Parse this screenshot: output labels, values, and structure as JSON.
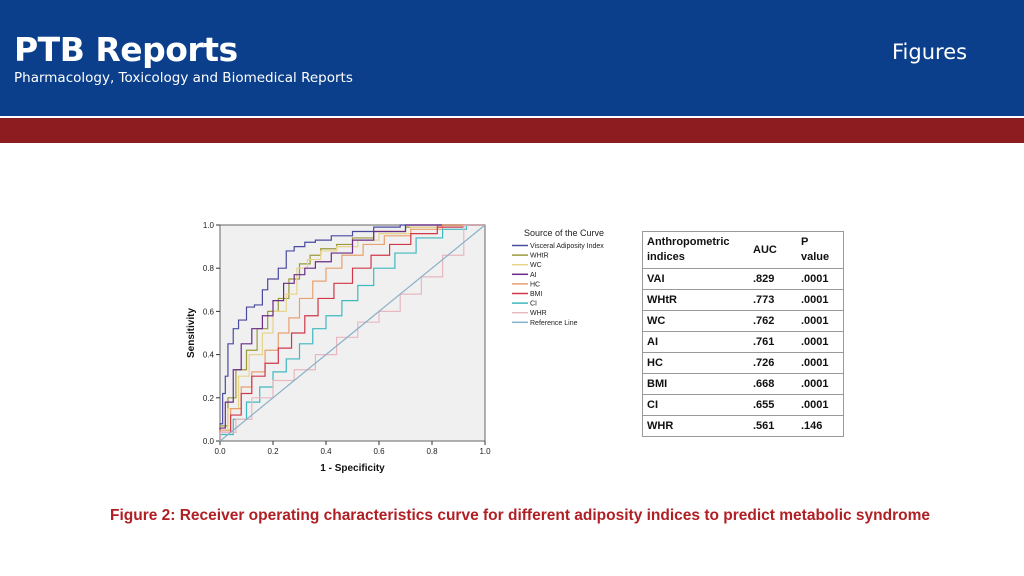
{
  "header": {
    "brand_title": "PTB Reports",
    "brand_subtitle": "Pharmacology, Toxicology and Biomedical Reports",
    "section_label": "Figures",
    "bg_color": "#0b3f8c",
    "band_color": "#8c1c1f"
  },
  "caption": "Figure 2: Receiver operating characteristics curve for different adiposity indices to predict metabolic syndrome",
  "auc_table": {
    "headers": [
      "Anthropometric indices",
      "AUC",
      "P value"
    ],
    "rows": [
      [
        "VAI",
        ".829",
        ".0001"
      ],
      [
        "WHtR",
        ".773",
        ".0001"
      ],
      [
        "WC",
        ".762",
        ".0001"
      ],
      [
        "AI",
        ".761",
        ".0001"
      ],
      [
        "HC",
        ".726",
        ".0001"
      ],
      [
        "BMI",
        ".668",
        ".0001"
      ],
      [
        "CI",
        ".655",
        ".0001"
      ],
      [
        "WHR",
        ".561",
        ".146"
      ]
    ]
  },
  "chart_data": {
    "type": "line",
    "xlabel": "1 - Specificity",
    "ylabel": "Sensitivity",
    "xlim": [
      0,
      1
    ],
    "ylim": [
      0,
      1
    ],
    "xticks": [
      "0.0",
      "0.2",
      "0.4",
      "0.6",
      "0.8",
      "1.0"
    ],
    "yticks": [
      "0.0",
      "0.2",
      "0.4",
      "0.6",
      "0.8",
      "1.0"
    ],
    "grid": false,
    "legend_title": "Source of the Curve",
    "legend_position": "right",
    "series": [
      {
        "name": "Visceral Adiposity Index",
        "color": "#4a4aa0",
        "points": [
          [
            0,
            0
          ],
          [
            0.01,
            0.08
          ],
          [
            0.02,
            0.22
          ],
          [
            0.03,
            0.3
          ],
          [
            0.05,
            0.45
          ],
          [
            0.07,
            0.52
          ],
          [
            0.1,
            0.56
          ],
          [
            0.13,
            0.62
          ],
          [
            0.16,
            0.63
          ],
          [
            0.18,
            0.7
          ],
          [
            0.22,
            0.75
          ],
          [
            0.25,
            0.8
          ],
          [
            0.28,
            0.88
          ],
          [
            0.3,
            0.9
          ],
          [
            0.32,
            0.9
          ],
          [
            0.36,
            0.92
          ],
          [
            0.42,
            0.93
          ],
          [
            0.5,
            0.95
          ],
          [
            0.58,
            0.97
          ],
          [
            0.68,
            0.99
          ],
          [
            0.8,
            1.0
          ],
          [
            1,
            1
          ]
        ]
      },
      {
        "name": "WHtR",
        "color": "#9a9a3a",
        "points": [
          [
            0,
            0
          ],
          [
            0.03,
            0.07
          ],
          [
            0.06,
            0.2
          ],
          [
            0.1,
            0.33
          ],
          [
            0.14,
            0.42
          ],
          [
            0.18,
            0.52
          ],
          [
            0.22,
            0.6
          ],
          [
            0.26,
            0.66
          ],
          [
            0.3,
            0.75
          ],
          [
            0.34,
            0.82
          ],
          [
            0.38,
            0.86
          ],
          [
            0.44,
            0.89
          ],
          [
            0.5,
            0.91
          ],
          [
            0.58,
            0.94
          ],
          [
            0.7,
            0.97
          ],
          [
            0.82,
            0.99
          ],
          [
            1,
            1
          ]
        ]
      },
      {
        "name": "WC",
        "color": "#e8d38a",
        "points": [
          [
            0,
            0
          ],
          [
            0.03,
            0.05
          ],
          [
            0.07,
            0.15
          ],
          [
            0.11,
            0.3
          ],
          [
            0.16,
            0.4
          ],
          [
            0.2,
            0.5
          ],
          [
            0.25,
            0.6
          ],
          [
            0.29,
            0.68
          ],
          [
            0.33,
            0.8
          ],
          [
            0.38,
            0.84
          ],
          [
            0.44,
            0.88
          ],
          [
            0.52,
            0.9
          ],
          [
            0.6,
            0.93
          ],
          [
            0.72,
            0.96
          ],
          [
            0.84,
            0.99
          ],
          [
            1,
            1
          ]
        ]
      },
      {
        "name": "AI",
        "color": "#6a2a86",
        "points": [
          [
            0,
            0
          ],
          [
            0.02,
            0.06
          ],
          [
            0.05,
            0.18
          ],
          [
            0.08,
            0.33
          ],
          [
            0.12,
            0.45
          ],
          [
            0.16,
            0.52
          ],
          [
            0.2,
            0.58
          ],
          [
            0.24,
            0.65
          ],
          [
            0.28,
            0.73
          ],
          [
            0.32,
            0.77
          ],
          [
            0.36,
            0.8
          ],
          [
            0.42,
            0.83
          ],
          [
            0.5,
            0.87
          ],
          [
            0.58,
            0.93
          ],
          [
            0.7,
            0.97
          ],
          [
            0.85,
            1.0
          ],
          [
            1,
            1
          ]
        ]
      },
      {
        "name": "HC",
        "color": "#e8a070",
        "points": [
          [
            0,
            0
          ],
          [
            0.04,
            0.05
          ],
          [
            0.08,
            0.15
          ],
          [
            0.12,
            0.25
          ],
          [
            0.17,
            0.32
          ],
          [
            0.22,
            0.42
          ],
          [
            0.26,
            0.5
          ],
          [
            0.3,
            0.57
          ],
          [
            0.35,
            0.66
          ],
          [
            0.4,
            0.74
          ],
          [
            0.46,
            0.8
          ],
          [
            0.54,
            0.86
          ],
          [
            0.62,
            0.91
          ],
          [
            0.72,
            0.95
          ],
          [
            0.84,
            0.98
          ],
          [
            1,
            1
          ]
        ]
      },
      {
        "name": "BMI",
        "color": "#d0384a",
        "points": [
          [
            0,
            0
          ],
          [
            0.04,
            0.04
          ],
          [
            0.08,
            0.12
          ],
          [
            0.12,
            0.22
          ],
          [
            0.17,
            0.3
          ],
          [
            0.22,
            0.36
          ],
          [
            0.27,
            0.43
          ],
          [
            0.32,
            0.5
          ],
          [
            0.37,
            0.58
          ],
          [
            0.43,
            0.66
          ],
          [
            0.5,
            0.73
          ],
          [
            0.57,
            0.8
          ],
          [
            0.64,
            0.86
          ],
          [
            0.72,
            0.91
          ],
          [
            0.82,
            0.96
          ],
          [
            0.92,
            0.99
          ],
          [
            1,
            1
          ]
        ]
      },
      {
        "name": "CI",
        "color": "#3fb8c0",
        "points": [
          [
            0,
            0
          ],
          [
            0.05,
            0.03
          ],
          [
            0.1,
            0.1
          ],
          [
            0.15,
            0.18
          ],
          [
            0.2,
            0.25
          ],
          [
            0.25,
            0.32
          ],
          [
            0.3,
            0.38
          ],
          [
            0.35,
            0.45
          ],
          [
            0.4,
            0.52
          ],
          [
            0.46,
            0.58
          ],
          [
            0.52,
            0.65
          ],
          [
            0.58,
            0.72
          ],
          [
            0.66,
            0.8
          ],
          [
            0.74,
            0.87
          ],
          [
            0.84,
            0.94
          ],
          [
            0.93,
            0.98
          ],
          [
            1,
            1
          ]
        ]
      },
      {
        "name": "WHR",
        "color": "#e8b8c0",
        "points": [
          [
            0,
            0
          ],
          [
            0.06,
            0.04
          ],
          [
            0.12,
            0.1
          ],
          [
            0.2,
            0.2
          ],
          [
            0.28,
            0.28
          ],
          [
            0.36,
            0.33
          ],
          [
            0.44,
            0.4
          ],
          [
            0.52,
            0.48
          ],
          [
            0.6,
            0.55
          ],
          [
            0.68,
            0.6
          ],
          [
            0.76,
            0.68
          ],
          [
            0.84,
            0.76
          ],
          [
            0.92,
            0.86
          ],
          [
            1,
            1
          ]
        ]
      },
      {
        "name": "Reference Line",
        "color": "#8ab0c8",
        "points": [
          [
            0,
            0
          ],
          [
            1,
            1
          ]
        ]
      }
    ]
  }
}
